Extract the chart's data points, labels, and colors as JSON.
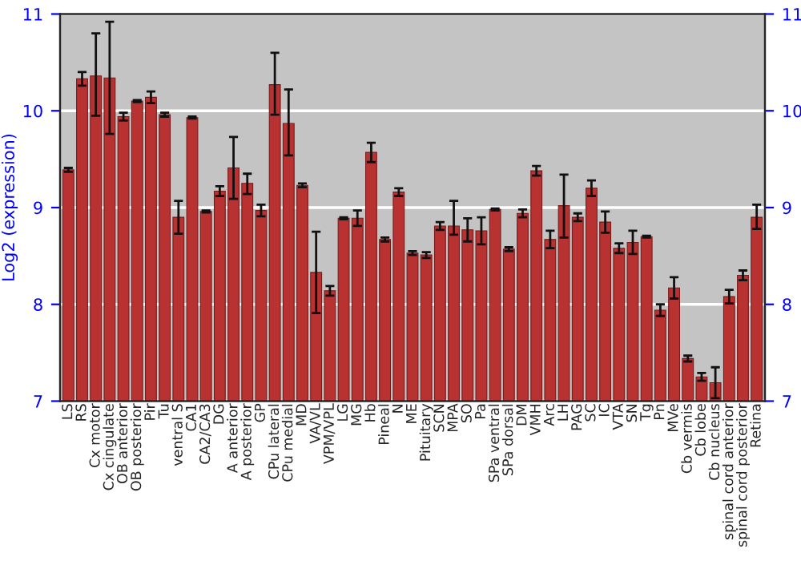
{
  "chart_data": {
    "type": "bar",
    "ylabel": "Log2 (expression)",
    "categories": [
      "LS",
      "RS",
      "Cx motor",
      "Cx cingulate",
      "OB anterior",
      "OB posterior",
      "Pir",
      "Tu",
      "ventral S",
      "CA1",
      "CA2/CA3",
      "DG",
      "A anterior",
      "A posterior",
      "GP",
      "CPu lateral",
      "CPu medial",
      "MD",
      "VA/VL",
      "VPM/VPL",
      "LG",
      "MG",
      "Hb",
      "Pineal",
      "N",
      "ME",
      "Pituitary",
      "SCN",
      "MPA",
      "SO",
      "Pa",
      "SPa ventral",
      "SPa dorsal",
      "DM",
      "VMH",
      "Arc",
      "LH",
      "PAG",
      "SC",
      "IC",
      "VTA",
      "SN",
      "Tg",
      "Pn",
      "MVe",
      "Cb vermis",
      "Cb lobe",
      "Cb nucleus",
      "spinal cord anterior",
      "spinal cord posterior",
      "Retina"
    ],
    "series": [
      {
        "color": "#b83232",
        "values": [
          9.39,
          10.33,
          10.36,
          10.34,
          9.94,
          10.1,
          10.14,
          9.96,
          8.9,
          9.93,
          8.96,
          9.17,
          9.41,
          9.25,
          8.97,
          10.27,
          9.87,
          9.23,
          8.33,
          8.14,
          8.89,
          8.89,
          9.57,
          8.67,
          9.16,
          8.53,
          8.51,
          8.81,
          8.81,
          8.77,
          8.76,
          8.98,
          8.57,
          8.94,
          9.38,
          8.67,
          9.02,
          8.9,
          9.2,
          8.85,
          8.58,
          8.64,
          8.7,
          7.94,
          8.17,
          7.44,
          7.25,
          7.19,
          8.08,
          8.3,
          8.9
        ],
        "errors": [
          0.02,
          0.07,
          [
            9.95,
            10.8
          ],
          [
            9.76,
            10.92
          ],
          0.04,
          0.01,
          0.06,
          0.02,
          [
            8.73,
            9.07
          ],
          0.01,
          0.01,
          0.05,
          [
            9.09,
            9.73
          ],
          [
            9.14,
            9.35
          ],
          0.06,
          [
            9.96,
            10.6
          ],
          [
            9.54,
            10.22
          ],
          0.02,
          [
            7.91,
            8.75
          ],
          0.05,
          0.01,
          0.08,
          0.1,
          0.02,
          0.04,
          0.02,
          0.03,
          0.04,
          [
            8.72,
            9.07
          ],
          0.12,
          0.14,
          0.01,
          0.02,
          0.04,
          0.05,
          0.09,
          [
            8.69,
            9.34
          ],
          0.04,
          0.08,
          0.11,
          0.05,
          0.12,
          0.01,
          0.06,
          0.11,
          0.03,
          0.04,
          [
            7.03,
            7.35
          ],
          0.07,
          0.05,
          [
            8.78,
            9.03
          ]
        ]
      }
    ],
    "ylim": [
      7,
      11
    ],
    "yticks": [
      7,
      8,
      9,
      10,
      11
    ],
    "y2lim": [
      7,
      11
    ],
    "y2ticks": [
      7,
      8,
      9,
      10,
      11
    ],
    "grid": "y",
    "legend": false
  }
}
